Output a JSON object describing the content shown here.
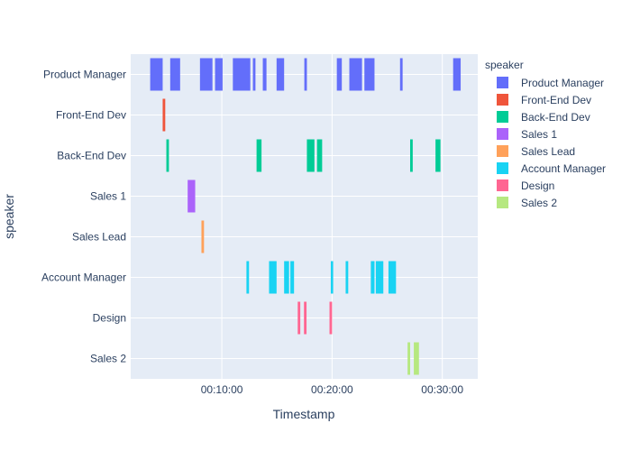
{
  "chart_data": {
    "type": "bar",
    "orientation": "horizontal-timeline",
    "xlabel": "Timestamp",
    "ylabel": "speaker",
    "xlim": [
      "00:01:44",
      "00:33:13"
    ],
    "x_ticks": [
      "00:10:00",
      "00:20:00",
      "00:30:00"
    ],
    "grid": true,
    "legend": {
      "title": "speaker",
      "placement": "right"
    },
    "categories": [
      "Product Manager",
      "Front-End Dev",
      "Back-End Dev",
      "Sales 1",
      "Sales Lead",
      "Account Manager",
      "Design",
      "Sales 2"
    ],
    "series": [
      {
        "name": "Product Manager",
        "color": "#636efa",
        "segments": [
          [
            "00:03:30",
            "00:04:38"
          ],
          [
            "00:05:19",
            "00:06:13"
          ],
          [
            "00:08:01",
            "00:09:09"
          ],
          [
            "00:09:23",
            "00:10:04"
          ],
          [
            "00:11:00",
            "00:12:35"
          ],
          [
            "00:12:49",
            "00:13:03"
          ],
          [
            "00:13:43",
            "00:14:03"
          ],
          [
            "00:14:58",
            "00:15:39"
          ],
          [
            "00:17:29",
            "00:17:43"
          ],
          [
            "00:20:26",
            "00:20:53"
          ],
          [
            "00:21:34",
            "00:22:43"
          ],
          [
            "00:22:56",
            "00:23:51"
          ],
          [
            "00:26:10",
            "00:26:24"
          ],
          [
            "00:30:59",
            "00:31:40"
          ]
        ]
      },
      {
        "name": "Front-End Dev",
        "color": "#EF553B",
        "segments": [
          [
            "00:04:38",
            "00:04:52"
          ]
        ]
      },
      {
        "name": "Back-End Dev",
        "color": "#00cc96",
        "segments": [
          [
            "00:04:58",
            "00:05:12"
          ],
          [
            "00:13:09",
            "00:13:36"
          ],
          [
            "00:17:43",
            "00:18:24"
          ],
          [
            "00:18:38",
            "00:19:06"
          ],
          [
            "00:27:05",
            "00:27:19"
          ],
          [
            "00:29:23",
            "00:29:50"
          ]
        ]
      },
      {
        "name": "Sales 1",
        "color": "#ab63fa",
        "segments": [
          [
            "00:06:54",
            "00:07:35"
          ]
        ]
      },
      {
        "name": "Sales Lead",
        "color": "#FFA15A",
        "segments": [
          [
            "00:08:09",
            "00:08:23"
          ]
        ]
      },
      {
        "name": "Account Manager",
        "color": "#19d3f3",
        "segments": [
          [
            "00:12:14",
            "00:12:28"
          ],
          [
            "00:14:17",
            "00:14:58"
          ],
          [
            "00:15:39",
            "00:16:06"
          ],
          [
            "00:16:13",
            "00:16:33"
          ],
          [
            "00:19:53",
            "00:20:06"
          ],
          [
            "00:21:14",
            "00:21:28"
          ],
          [
            "00:23:31",
            "00:23:51"
          ],
          [
            "00:23:58",
            "00:24:39"
          ],
          [
            "00:25:07",
            "00:25:48"
          ]
        ]
      },
      {
        "name": "Design",
        "color": "#FF6692",
        "segments": [
          [
            "00:16:53",
            "00:17:07"
          ],
          [
            "00:17:27",
            "00:17:41"
          ],
          [
            "00:19:46",
            "00:20:00"
          ]
        ]
      },
      {
        "name": "Sales 2",
        "color": "#B6E880",
        "segments": [
          [
            "00:26:51",
            "00:27:05"
          ],
          [
            "00:27:25",
            "00:27:53"
          ]
        ]
      }
    ]
  }
}
